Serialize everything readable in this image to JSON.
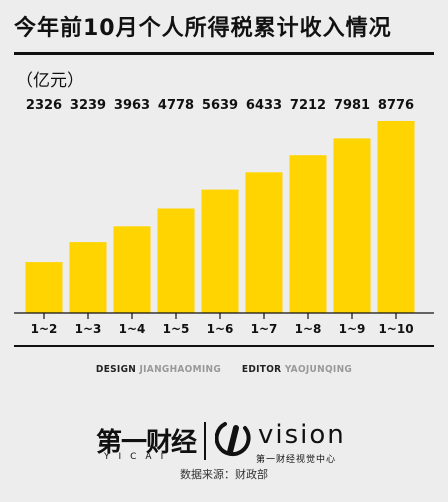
{
  "header": {
    "title": "今年前10月个人所得税累计收入情况",
    "unit": "（亿元）"
  },
  "chart_data": {
    "type": "bar",
    "title": "今年前10月个人所得税累计收入情况",
    "ylabel": "（亿元）",
    "xlabel": "",
    "categories": [
      "1~2",
      "1~3",
      "1~4",
      "1~5",
      "1~6",
      "1~7",
      "1~8",
      "1~9",
      "1~10"
    ],
    "values": [
      2326,
      3239,
      3963,
      4778,
      5639,
      6433,
      7212,
      7981,
      8776
    ],
    "data_labels": [
      "2326",
      "3239",
      "3963",
      "4778",
      "5639",
      "6433",
      "7212",
      "7981",
      "8776"
    ],
    "grid": false,
    "legend": "none",
    "bar_color": "#ffd400"
  },
  "credits": {
    "design_label": "DESIGN",
    "design_name": "JIANGHAOMING",
    "editor_label": "EDITOR",
    "editor_name": "YAOJUNQING"
  },
  "logos": {
    "left_main": "第一财经",
    "left_sub": "YICAI",
    "right_main": "vision",
    "right_sub": "第一财经视觉中心"
  },
  "source": "数据来源：财政部",
  "colors": {
    "background": "#ededed",
    "bar": "#ffd400",
    "text": "#111111"
  }
}
